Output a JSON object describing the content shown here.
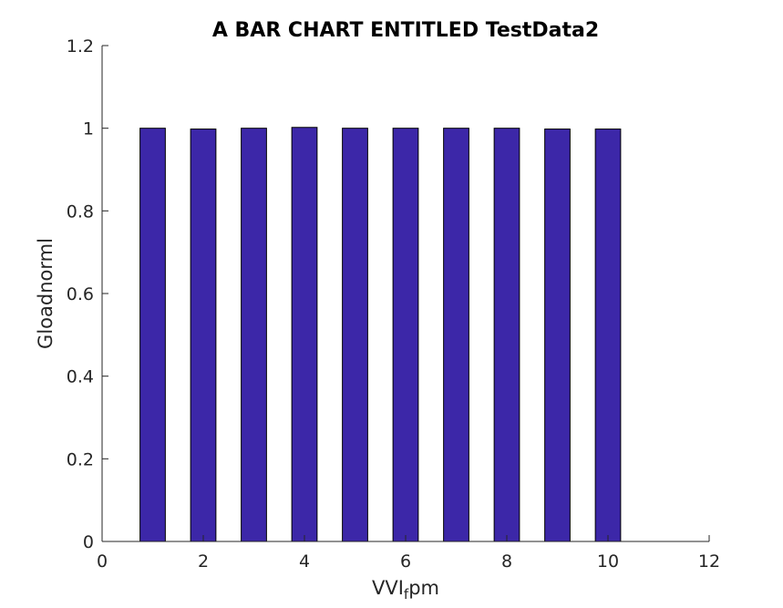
{
  "chart_data": {
    "type": "bar",
    "title": "A BAR CHART ENTITLED TestData2",
    "xlabel": {
      "main": "VVI",
      "subscript": "f",
      "suffix": "pm"
    },
    "ylabel": "Gloadnorml",
    "x": [
      1,
      2,
      3,
      4,
      5,
      6,
      7,
      8,
      9,
      10
    ],
    "values": [
      1.0,
      0.998,
      1.0,
      1.002,
      1.0,
      1.0,
      1.0,
      1.0,
      0.998,
      0.998
    ],
    "xlim": [
      0,
      12
    ],
    "ylim": [
      0,
      1.2
    ],
    "xticks": [
      0,
      2,
      4,
      6,
      8,
      10,
      12
    ],
    "yticks": [
      0,
      0.2,
      0.4,
      0.6,
      0.8,
      1,
      1.2
    ],
    "xtick_labels": [
      "0",
      "2",
      "4",
      "6",
      "8",
      "10",
      "12"
    ],
    "ytick_labels": [
      "0",
      "0.2",
      "0.4",
      "0.6",
      "0.8",
      "1",
      "1.2"
    ],
    "bar_color": "#3c27a8",
    "grid": false,
    "box": false
  }
}
